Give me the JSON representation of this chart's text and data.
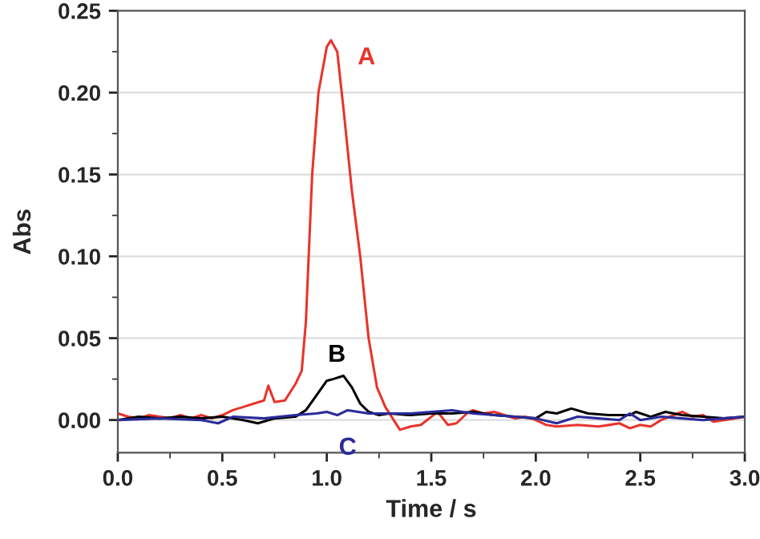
{
  "chart_data": {
    "type": "line",
    "xlabel": "Time / s",
    "ylabel": "Abs",
    "xlim": [
      0,
      3
    ],
    "ylim": [
      -0.02,
      0.25
    ],
    "xticks": [
      {
        "value": 0,
        "label": "0.0"
      },
      {
        "value": 0.5,
        "label": "0.5"
      },
      {
        "value": 1,
        "label": "1.0"
      },
      {
        "value": 1.5,
        "label": "1.5"
      },
      {
        "value": 2,
        "label": "2.0"
      },
      {
        "value": 2.5,
        "label": "2.5"
      },
      {
        "value": 3,
        "label": "3.0"
      }
    ],
    "yticks": [
      {
        "value": 0,
        "label": "0.00"
      },
      {
        "value": 0.05,
        "label": "0.05"
      },
      {
        "value": 0.1,
        "label": "0.10"
      },
      {
        "value": 0.15,
        "label": "0.15"
      },
      {
        "value": 0.2,
        "label": "0.20"
      },
      {
        "value": 0.25,
        "label": "0.25"
      }
    ],
    "grid": "y",
    "legend": false,
    "marker": "none",
    "line_style": "solid",
    "series": [
      {
        "name": "A",
        "color": "#e8342c",
        "x": [
          0,
          0.05,
          0.1,
          0.15,
          0.2,
          0.25,
          0.3,
          0.35,
          0.4,
          0.45,
          0.5,
          0.55,
          0.6,
          0.65,
          0.7,
          0.72,
          0.75,
          0.8,
          0.85,
          0.88,
          0.9,
          0.93,
          0.96,
          1.0,
          1.02,
          1.05,
          1.08,
          1.12,
          1.16,
          1.2,
          1.24,
          1.28,
          1.32,
          1.35,
          1.4,
          1.45,
          1.5,
          1.53,
          1.58,
          1.62,
          1.67,
          1.7,
          1.75,
          1.8,
          1.85,
          1.9,
          1.95,
          2.0,
          2.05,
          2.1,
          2.2,
          2.3,
          2.4,
          2.45,
          2.5,
          2.55,
          2.6,
          2.7,
          2.75,
          2.8,
          2.85,
          2.9,
          2.95,
          3.0
        ],
        "values": [
          0.004,
          0.002,
          0.001,
          0.003,
          0.002,
          0.001,
          0.003,
          0.001,
          0.003,
          0.001,
          0.003,
          0.006,
          0.008,
          0.01,
          0.012,
          0.021,
          0.011,
          0.012,
          0.022,
          0.03,
          0.06,
          0.15,
          0.2,
          0.228,
          0.232,
          0.225,
          0.19,
          0.14,
          0.1,
          0.05,
          0.02,
          0.008,
          0.0,
          -0.006,
          -0.004,
          -0.003,
          0.002,
          0.005,
          -0.003,
          -0.002,
          0.004,
          0.006,
          0.004,
          0.005,
          0.003,
          0.001,
          0.002,
          0.0,
          -0.003,
          -0.004,
          -0.003,
          -0.004,
          -0.002,
          -0.005,
          -0.003,
          -0.004,
          0.0,
          0.005,
          0.002,
          0.003,
          -0.001,
          0.0,
          0.001,
          0.002
        ]
      },
      {
        "name": "B",
        "color": "#000000",
        "x": [
          0,
          0.1,
          0.2,
          0.3,
          0.4,
          0.5,
          0.6,
          0.67,
          0.75,
          0.85,
          0.9,
          0.95,
          1.0,
          1.03,
          1.08,
          1.12,
          1.16,
          1.2,
          1.25,
          1.3,
          1.4,
          1.5,
          1.6,
          1.7,
          1.8,
          1.9,
          2.0,
          2.05,
          2.1,
          2.17,
          2.25,
          2.35,
          2.45,
          2.48,
          2.55,
          2.62,
          2.7,
          2.8,
          2.9,
          3.0
        ],
        "values": [
          0.0,
          0.002,
          0.001,
          0.002,
          0.001,
          0.002,
          0.0,
          -0.002,
          0.001,
          0.002,
          0.006,
          0.015,
          0.024,
          0.025,
          0.027,
          0.02,
          0.01,
          0.005,
          0.003,
          0.004,
          0.003,
          0.004,
          0.004,
          0.005,
          0.003,
          0.002,
          0.001,
          0.005,
          0.004,
          0.007,
          0.004,
          0.003,
          0.003,
          0.005,
          0.002,
          0.005,
          0.003,
          0.002,
          0.001,
          0.002
        ]
      },
      {
        "name": "C",
        "color": "#2b2b9b",
        "x": [
          0,
          0.2,
          0.4,
          0.48,
          0.55,
          0.7,
          0.85,
          0.95,
          1.0,
          1.05,
          1.1,
          1.2,
          1.3,
          1.4,
          1.5,
          1.6,
          1.7,
          1.8,
          1.9,
          2.0,
          2.1,
          2.2,
          2.3,
          2.4,
          2.45,
          2.5,
          2.6,
          2.7,
          2.8,
          2.9,
          3.0
        ],
        "values": [
          0.0,
          0.001,
          0.0,
          -0.002,
          0.002,
          0.001,
          0.003,
          0.004,
          0.005,
          0.003,
          0.006,
          0.004,
          0.004,
          0.004,
          0.005,
          0.006,
          0.004,
          0.003,
          0.002,
          0.001,
          -0.002,
          0.002,
          0.001,
          0.0,
          0.004,
          0.0,
          0.002,
          0.001,
          0.0,
          0.001,
          0.002
        ]
      }
    ]
  }
}
